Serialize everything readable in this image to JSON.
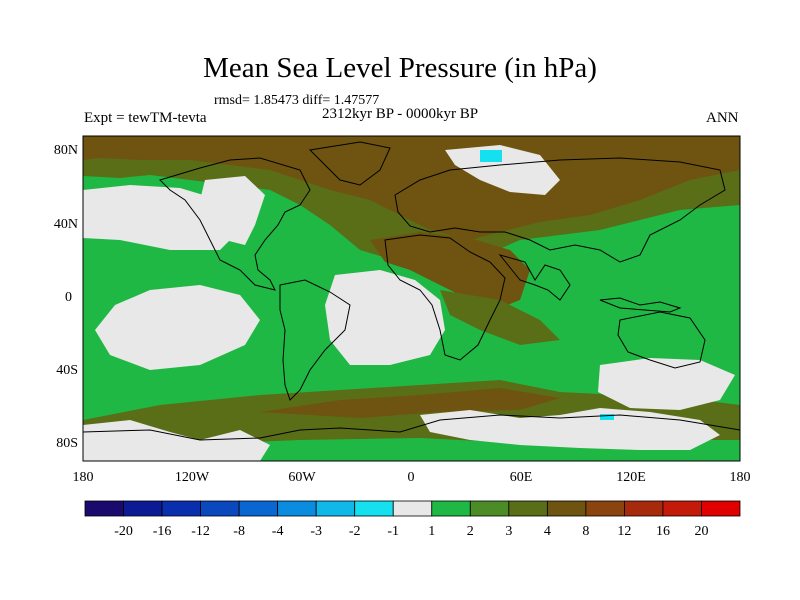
{
  "title": "Mean Sea Level Pressure (in hPa)",
  "stats": "rmsd= 1.85473 diff= 1.47577",
  "left_label": "Expt = tewTM-tevta",
  "center_label": "2312kyr BP - 0000kyr BP",
  "right_label": "ANN",
  "map": {
    "lat_ticks": [
      "80N",
      "40N",
      "0",
      "40S",
      "80S"
    ],
    "lon_ticks": [
      "180",
      "120W",
      "60W",
      "0",
      "60E",
      "120E",
      "180"
    ],
    "ocean_color": "#20b844",
    "continent_line_color": "#000000"
  },
  "colorbar": {
    "labels": [
      "-20",
      "-16",
      "-12",
      "-8",
      "-4",
      "-3",
      "-2",
      "-1",
      "1",
      "2",
      "3",
      "4",
      "8",
      "12",
      "16",
      "20"
    ],
    "colors": [
      "#1a0a6e",
      "#0c1a94",
      "#0a2fae",
      "#0a48c0",
      "#0a66d0",
      "#0a8ce0",
      "#10b8ea",
      "#14e0f0",
      "#e8e8e8",
      "#20b844",
      "#4c8c26",
      "#5a6e18",
      "#6e5410",
      "#8a4410",
      "#a82a0c",
      "#c41a0a",
      "#e00000"
    ]
  }
}
